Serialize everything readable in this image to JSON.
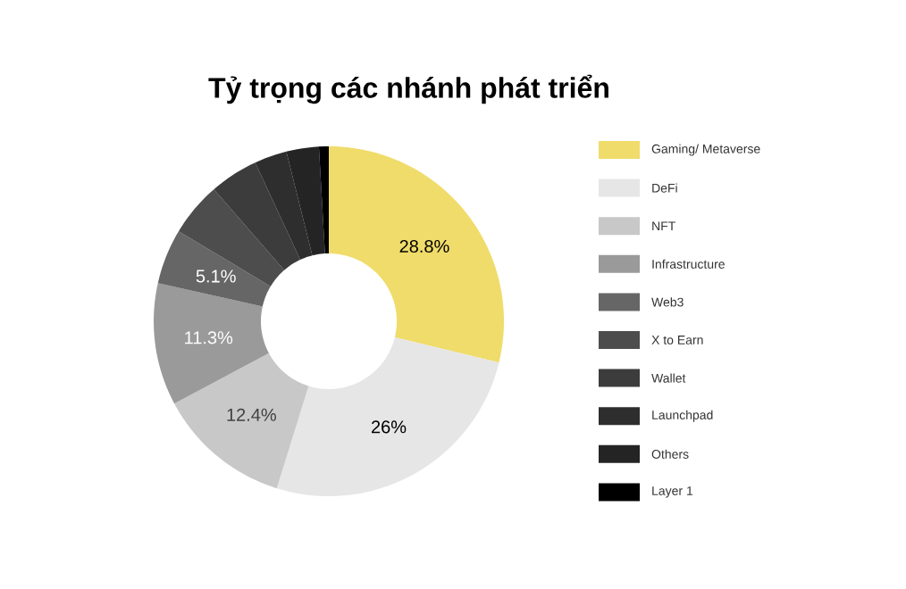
{
  "chart_data": {
    "type": "donut",
    "title": "Tỷ trọng các nhánh phát triển",
    "categories": [
      "Gaming/ Metaverse",
      "DeFi",
      "NFT",
      "Infrastructure",
      "Web3",
      "X to Earn",
      "Wallet",
      "Launchpad",
      "Others",
      "Layer 1"
    ],
    "values": [
      28.8,
      26,
      12.4,
      11.3,
      5.1,
      5,
      4.5,
      3,
      3,
      0.9
    ],
    "colors": [
      "#f0dc6a",
      "#e6e6e6",
      "#c8c8c8",
      "#9a9a9a",
      "#666666",
      "#4d4d4d",
      "#3c3c3c",
      "#2e2e2e",
      "#242424",
      "#000000"
    ],
    "value_labels": [
      "28.8%",
      "26%",
      "12.4%",
      "11.3%",
      "5.1%",
      null,
      null,
      null,
      null,
      null
    ],
    "legend": "right"
  }
}
